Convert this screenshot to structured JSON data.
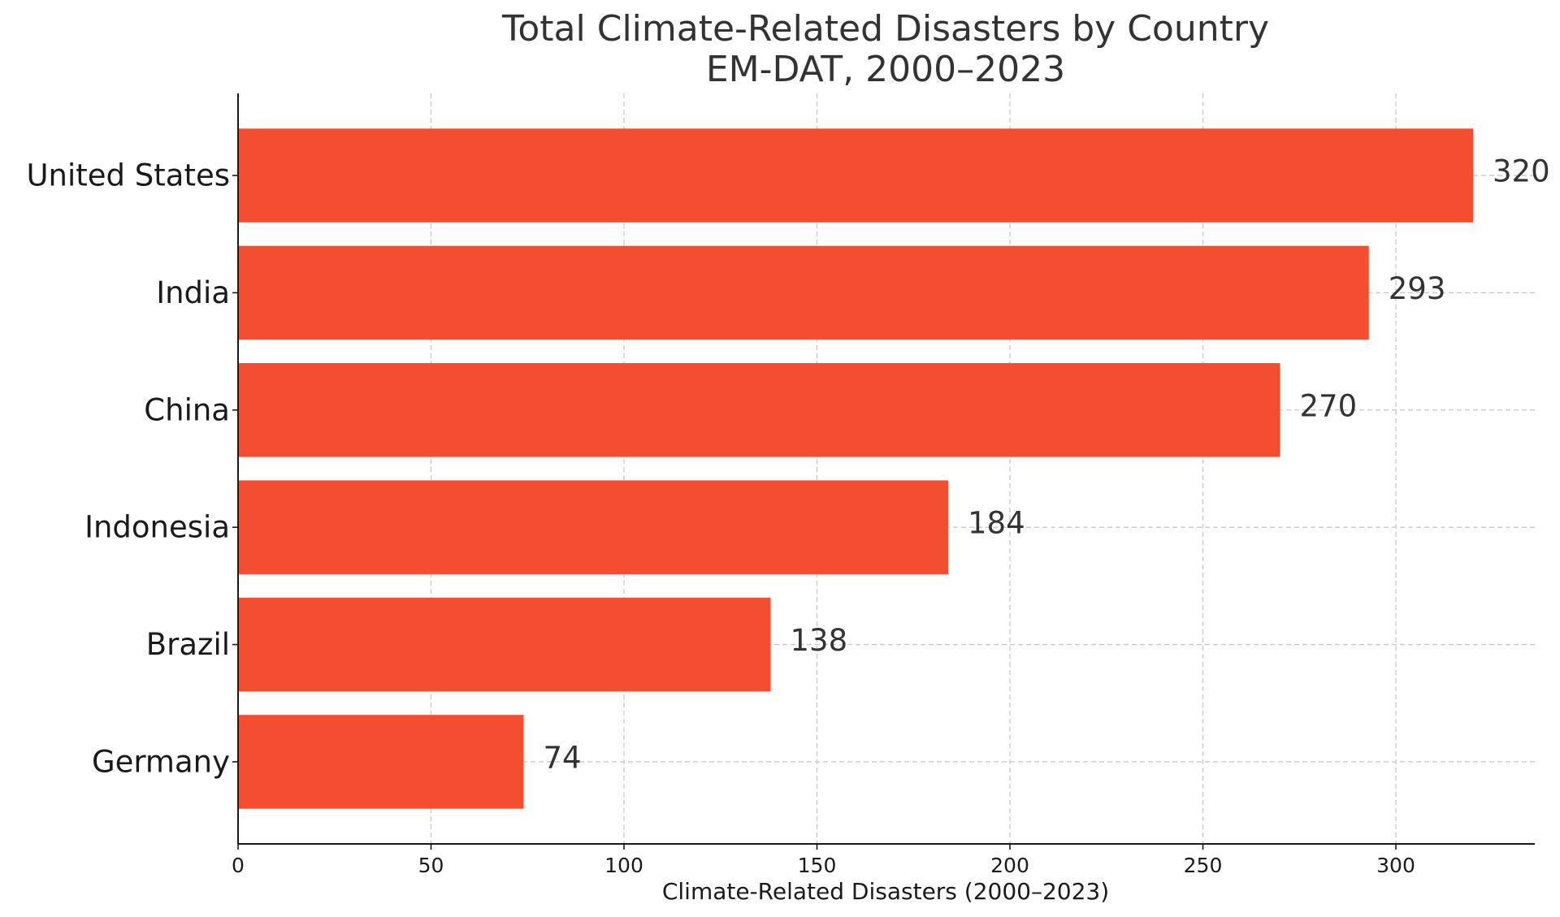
{
  "chart_data": {
    "type": "bar",
    "orientation": "horizontal",
    "title": "Total Climate-Related Disasters by Country",
    "subtitle": "EM-DAT, 2000–2023",
    "xlabel": "Climate-Related Disasters (2000–2023)",
    "ylabel": "",
    "categories": [
      "United States",
      "India",
      "China",
      "Indonesia",
      "Brazil",
      "Germany"
    ],
    "values": [
      320,
      293,
      270,
      184,
      138,
      74
    ],
    "value_labels": [
      "320",
      "293",
      "270",
      "184",
      "138",
      "74"
    ],
    "xlim": [
      0,
      336
    ],
    "xticks": [
      0,
      50,
      100,
      150,
      200,
      250,
      300
    ],
    "xtick_labels": [
      "0",
      "50",
      "100",
      "150",
      "200",
      "250",
      "300"
    ],
    "grid": true,
    "bar_color": "#f24e2f"
  }
}
